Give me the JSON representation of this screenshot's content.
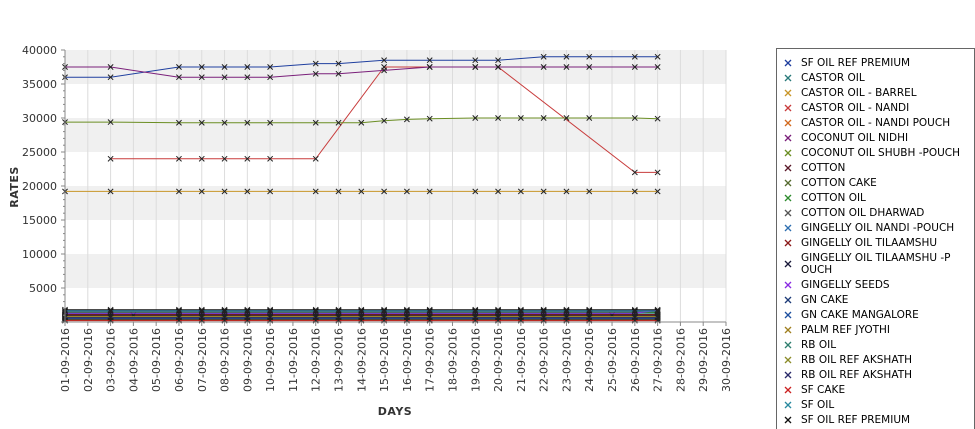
{
  "chart_data": {
    "type": "line",
    "title": "",
    "xlabel": "DAYS",
    "ylabel": "RATES",
    "ylim": [
      0,
      40000
    ],
    "yticks": [
      5000,
      10000,
      15000,
      20000,
      25000,
      30000,
      35000,
      40000
    ],
    "ytick_labels": [
      "5000",
      "10000",
      "15000",
      "20000",
      "25000",
      "30000",
      "35000",
      "40000"
    ],
    "grid": "horizontal-bands",
    "legend_position": "right",
    "categories": [
      "01-09-2016",
      "02-09-2016",
      "03-09-2016",
      "04-09-2016",
      "05-09-2016",
      "06-09-2016",
      "07-09-2016",
      "08-09-2016",
      "09-09-2016",
      "10-09-2016",
      "11-09-2016",
      "12-09-2016",
      "13-09-2016",
      "14-09-2016",
      "15-09-2016",
      "16-09-2016",
      "17-09-2016",
      "18-09-2016",
      "19-09-2016",
      "20-09-2016",
      "21-09-2016",
      "22-09-2016",
      "23-09-2016",
      "24-09-2016",
      "25-09-2016",
      "26-09-2016",
      "27-09-2016",
      "28-09-2016",
      "29-09-2016",
      "30-09-2016"
    ],
    "series": [
      {
        "name": " SF OIL REF PREMIUM",
        "color": "#1f3f9f",
        "values": [
          36000,
          null,
          36000,
          null,
          null,
          37500,
          37500,
          37500,
          37500,
          37500,
          null,
          38000,
          38000,
          null,
          38500,
          null,
          38500,
          null,
          38500,
          38500,
          null,
          39000,
          39000,
          39000,
          null,
          39000,
          39000,
          null,
          null,
          null
        ]
      },
      {
        "name": "CASTOR OIL",
        "color": "#2a7a7a",
        "values": [
          1200,
          null,
          1200,
          null,
          null,
          1200,
          1200,
          1200,
          1200,
          1200,
          null,
          1200,
          1200,
          1200,
          1200,
          1200,
          1200,
          null,
          1200,
          1200,
          1200,
          1200,
          1200,
          1200,
          null,
          1200,
          1200,
          null,
          null,
          null
        ]
      },
      {
        "name": "CASTOR OIL - BARREL",
        "color": "#c89628",
        "values": [
          19200,
          null,
          19200,
          null,
          null,
          19200,
          19200,
          19200,
          19200,
          19200,
          null,
          19200,
          19200,
          19200,
          19200,
          19200,
          19200,
          null,
          19200,
          19200,
          19200,
          19200,
          19200,
          19200,
          null,
          19200,
          19200,
          null,
          null,
          null
        ]
      },
      {
        "name": "CASTOR OIL - NANDI",
        "color": "#c83c3c",
        "values": [
          null,
          null,
          24000,
          null,
          null,
          24000,
          24000,
          24000,
          24000,
          24000,
          null,
          24000,
          null,
          null,
          37500,
          null,
          37500,
          null,
          37500,
          37500,
          null,
          null,
          null,
          null,
          null,
          22000,
          22000,
          null,
          null,
          null
        ]
      },
      {
        "name": "CASTOR OIL - NANDI POUCH",
        "color": "#d2691e",
        "values": [
          900,
          null,
          900,
          null,
          null,
          900,
          900,
          900,
          900,
          900,
          null,
          900,
          900,
          900,
          900,
          900,
          900,
          null,
          900,
          900,
          900,
          900,
          900,
          900,
          null,
          900,
          900,
          null,
          null,
          null
        ]
      },
      {
        "name": "COCONUT OIL NIDHI",
        "color": "#7a1f7a",
        "values": [
          37500,
          null,
          37500,
          null,
          null,
          36000,
          36000,
          36000,
          36000,
          36000,
          null,
          36500,
          36500,
          null,
          37000,
          null,
          37500,
          null,
          37500,
          37500,
          null,
          37500,
          37500,
          37500,
          null,
          37500,
          37500,
          null,
          null,
          null
        ]
      },
      {
        "name": "COCONUT OIL SHUBH -POUCH",
        "color": "#6b8e23",
        "values": [
          29400,
          null,
          29400,
          null,
          null,
          29300,
          29300,
          29300,
          29300,
          29300,
          null,
          29300,
          29300,
          29300,
          29600,
          29800,
          29900,
          null,
          30000,
          30000,
          30000,
          30000,
          30000,
          30000,
          null,
          30000,
          29900,
          null,
          null,
          null
        ]
      },
      {
        "name": "COTTON",
        "color": "#5a1a2a",
        "values": [
          400,
          null,
          400,
          null,
          null,
          400,
          400,
          400,
          400,
          400,
          null,
          400,
          400,
          400,
          400,
          400,
          400,
          null,
          400,
          400,
          400,
          400,
          400,
          400,
          null,
          400,
          400,
          null,
          null,
          null
        ]
      },
      {
        "name": "COTTON CAKE",
        "color": "#556b2f",
        "values": [
          300,
          null,
          300,
          null,
          null,
          300,
          300,
          300,
          300,
          300,
          null,
          300,
          300,
          300,
          300,
          300,
          300,
          null,
          300,
          300,
          300,
          300,
          300,
          300,
          null,
          300,
          300,
          null,
          null,
          null
        ]
      },
      {
        "name": "COTTON OIL",
        "color": "#2e8b2e",
        "values": [
          1400,
          null,
          1400,
          null,
          null,
          1400,
          1400,
          1400,
          1400,
          1400,
          null,
          1400,
          1400,
          1400,
          1400,
          1400,
          1400,
          null,
          1400,
          1400,
          1400,
          1400,
          1400,
          1400,
          null,
          1400,
          1400,
          null,
          null,
          null
        ]
      },
      {
        "name": "COTTON OIL DHARWAD",
        "color": "#555555",
        "values": [
          1500,
          null,
          1500,
          null,
          null,
          1500,
          1500,
          1500,
          1500,
          1500,
          null,
          1500,
          1500,
          1500,
          1500,
          1500,
          1500,
          null,
          1500,
          1500,
          1500,
          1500,
          1500,
          1500,
          null,
          1500,
          1500,
          null,
          null,
          null
        ]
      },
      {
        "name": "GINGELLY OIL NANDI -POUCH",
        "color": "#2f6fb0",
        "values": [
          1700,
          null,
          1700,
          null,
          null,
          1700,
          1700,
          1700,
          1700,
          1700,
          null,
          1700,
          1700,
          1700,
          1700,
          1700,
          1700,
          null,
          1700,
          1700,
          1700,
          1700,
          1700,
          1700,
          null,
          1700,
          1700,
          null,
          null,
          null
        ]
      },
      {
        "name": "GINGELLY OIL TILAAMSHU",
        "color": "#8b1a1a",
        "values": [
          1100,
          null,
          1100,
          null,
          null,
          1100,
          1100,
          1100,
          1100,
          1100,
          null,
          1100,
          1100,
          1100,
          1100,
          1100,
          1100,
          null,
          1100,
          1100,
          1100,
          1100,
          1100,
          1100,
          null,
          1100,
          1100,
          null,
          null,
          null
        ]
      },
      {
        "name": "GINGELLY OIL TILAAMSHU -P\nOUCH",
        "color": "#1a1a3a",
        "values": [
          1000,
          null,
          1000,
          1000,
          null,
          1000,
          1000,
          1000,
          1000,
          1000,
          null,
          1000,
          1000,
          1000,
          1000,
          1000,
          1000,
          null,
          1000,
          1000,
          1000,
          1000,
          1000,
          1000,
          1000,
          1000,
          1000,
          null,
          null,
          null
        ]
      },
      {
        "name": "GINGELLY SEEDS",
        "color": "#8a2be2",
        "values": [
          1300,
          null,
          1300,
          null,
          null,
          1300,
          1300,
          1300,
          1300,
          1300,
          null,
          1300,
          1300,
          1300,
          1300,
          1300,
          1300,
          null,
          1300,
          1300,
          1300,
          1300,
          1300,
          1300,
          null,
          1300,
          1700,
          null,
          null,
          null
        ]
      },
      {
        "name": "GN CAKE",
        "color": "#1e3c78",
        "values": [
          500,
          null,
          500,
          null,
          null,
          500,
          500,
          500,
          500,
          500,
          null,
          500,
          500,
          500,
          500,
          500,
          500,
          null,
          500,
          500,
          500,
          500,
          500,
          500,
          null,
          500,
          500,
          null,
          null,
          null
        ]
      },
      {
        "name": "GN CAKE MANGALORE",
        "color": "#1e50a0",
        "values": [
          600,
          null,
          600,
          null,
          null,
          600,
          600,
          600,
          600,
          600,
          null,
          600,
          600,
          600,
          600,
          600,
          600,
          null,
          600,
          600,
          600,
          600,
          600,
          600,
          null,
          600,
          600,
          null,
          null,
          null
        ]
      },
      {
        "name": "PALM REF JYOTHI",
        "color": "#a08020",
        "values": [
          800,
          null,
          800,
          null,
          null,
          800,
          800,
          800,
          800,
          800,
          null,
          800,
          800,
          800,
          800,
          800,
          800,
          null,
          800,
          800,
          800,
          800,
          800,
          800,
          null,
          800,
          800,
          null,
          null,
          null
        ]
      },
      {
        "name": "RB OIL",
        "color": "#2f7f6f",
        "values": [
          700,
          null,
          700,
          null,
          null,
          700,
          700,
          700,
          700,
          700,
          null,
          700,
          700,
          700,
          700,
          700,
          700,
          null,
          700,
          700,
          700,
          700,
          700,
          700,
          null,
          700,
          700,
          null,
          null,
          null
        ]
      },
      {
        "name": "RB OIL REF  AKSHATH",
        "color": "#8b8b2a",
        "values": [
          750,
          null,
          750,
          null,
          null,
          750,
          750,
          750,
          750,
          750,
          null,
          750,
          750,
          750,
          750,
          750,
          750,
          null,
          750,
          750,
          750,
          750,
          750,
          750,
          null,
          750,
          750,
          null,
          null,
          null
        ]
      },
      {
        "name": "RB OIL REF AKSHATH",
        "color": "#2a2a6a",
        "values": [
          650,
          null,
          650,
          null,
          null,
          650,
          650,
          650,
          650,
          650,
          null,
          650,
          650,
          650,
          650,
          650,
          650,
          null,
          650,
          650,
          650,
          650,
          650,
          650,
          null,
          650,
          650,
          null,
          null,
          null
        ]
      },
      {
        "name": "SF CAKE",
        "color": "#cc2222",
        "values": [
          200,
          null,
          200,
          null,
          null,
          200,
          200,
          200,
          200,
          200,
          null,
          200,
          200,
          200,
          200,
          200,
          200,
          null,
          200,
          200,
          200,
          200,
          200,
          200,
          null,
          200,
          200,
          null,
          null,
          null
        ]
      },
      {
        "name": "SF OIL",
        "color": "#2a8aa0",
        "values": [
          1600,
          null,
          1600,
          null,
          null,
          1600,
          1600,
          1600,
          1600,
          1600,
          null,
          1600,
          1600,
          1600,
          1600,
          1600,
          1600,
          null,
          1600,
          1600,
          1600,
          1600,
          1600,
          1600,
          null,
          1600,
          1600,
          null,
          null,
          null
        ]
      },
      {
        "name": "SF OIL REF PREMIUM",
        "color": "#111111",
        "values": [
          1800,
          null,
          1800,
          null,
          null,
          1800,
          1800,
          1800,
          1800,
          1800,
          null,
          1800,
          1800,
          1800,
          1800,
          1800,
          1800,
          null,
          1800,
          1800,
          1800,
          1800,
          1800,
          1800,
          null,
          1800,
          1800,
          null,
          null,
          null
        ]
      }
    ]
  }
}
